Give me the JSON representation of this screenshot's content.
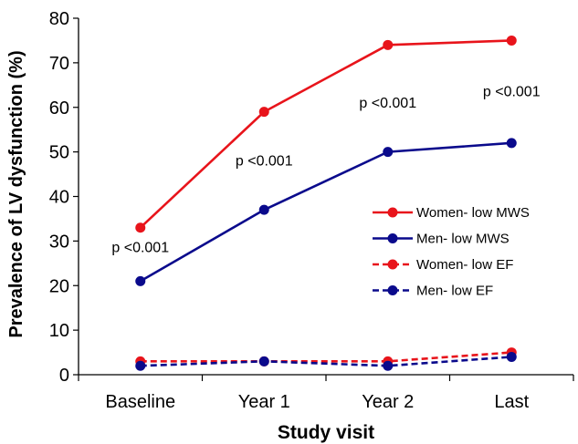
{
  "chart_data": {
    "type": "line",
    "categories": [
      "Baseline",
      "Year 1",
      "Year 2",
      "Last"
    ],
    "ylabel": "Prevalence of LV dysfunction (%)",
    "xlabel": "Study visit",
    "ylim": [
      0,
      80
    ],
    "yticks": [
      0,
      10,
      20,
      30,
      40,
      50,
      60,
      70,
      80
    ],
    "grid": false,
    "legend_position": "right",
    "series": [
      {
        "name": "Women- low MWS",
        "values": [
          33,
          59,
          74,
          75
        ],
        "color": "#e8141b",
        "dashed": false
      },
      {
        "name": "Men- low MWS",
        "values": [
          21,
          37,
          50,
          52
        ],
        "color": "#0a0a8c",
        "dashed": false
      },
      {
        "name": "Women- low EF",
        "values": [
          3,
          3,
          3,
          5
        ],
        "color": "#e8141b",
        "dashed": true
      },
      {
        "name": "Men- low EF",
        "values": [
          2,
          3,
          2,
          4
        ],
        "color": "#0a0a8c",
        "dashed": true
      }
    ],
    "annotations": [
      {
        "text": "p <0.001",
        "category": 0,
        "y": 27.5
      },
      {
        "text": "p <0.001",
        "category": 1,
        "y": 47
      },
      {
        "text": "p <0.001",
        "category": 2,
        "y": 60
      },
      {
        "text": "p <0.001",
        "category": 3,
        "y": 62.5
      }
    ]
  }
}
